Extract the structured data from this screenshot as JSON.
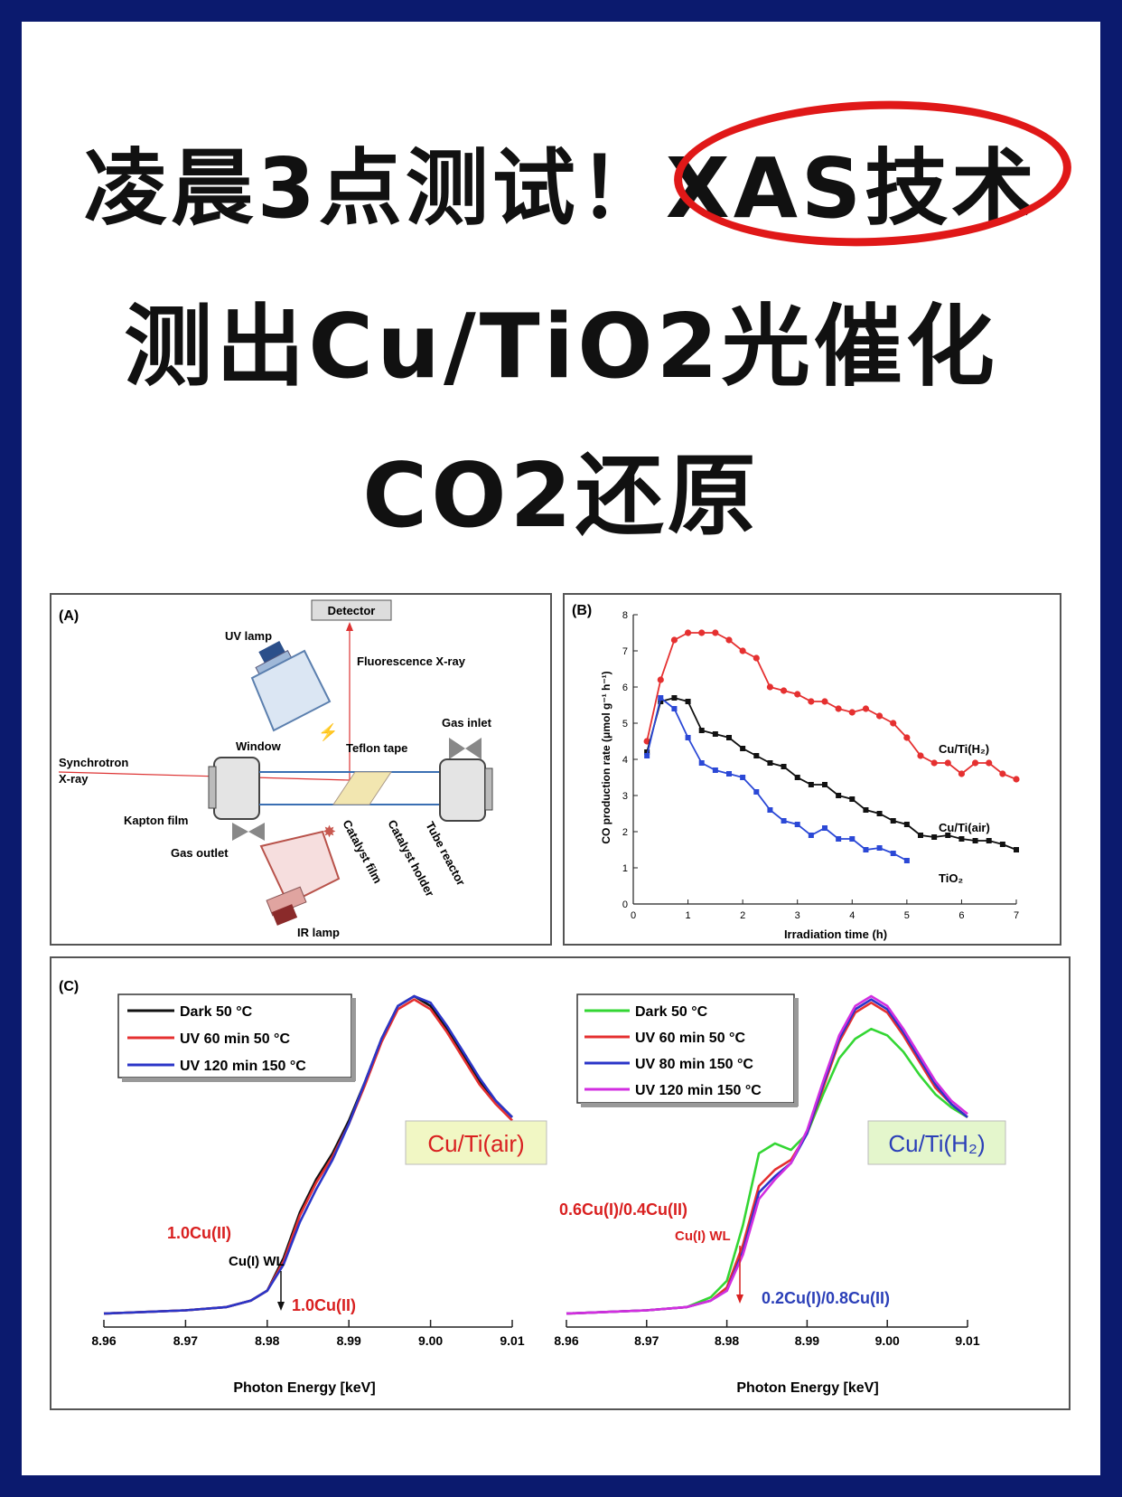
{
  "title": {
    "line1_prefix": "凌晨3点测试！",
    "line1_highlight": "XAS技术",
    "line2": "测出Cu/TiO2光催化",
    "line3": "CO2还原"
  },
  "panelA": {
    "label": "(A)",
    "detector": "Detector",
    "uv_lamp": "UV lamp",
    "fluorescence": "Fluorescence X-ray",
    "gas_inlet": "Gas inlet",
    "window": "Window",
    "teflon": "Teflon tape",
    "synchrotron1": "Synchrotron",
    "synchrotron2": "X-ray",
    "kapton": "Kapton film",
    "gas_outlet": "Gas outlet",
    "catalyst_film": "Catalyst film",
    "catalyst_holder": "Catalyst holder",
    "tube_reactor": "Tube reactor",
    "ir_lamp": "IR lamp"
  },
  "chart_data": [
    {
      "type": "line",
      "panel": "(B)",
      "xlabel": "Irradiation time (h)",
      "ylabel": "CO production rate (μmol g⁻¹ h⁻¹)",
      "xlim": [
        0,
        7
      ],
      "ylim": [
        0,
        8
      ],
      "xticks": [
        "0",
        "1",
        "2",
        "3",
        "4",
        "5",
        "6",
        "7"
      ],
      "yticks": [
        "0",
        "1",
        "2",
        "3",
        "4",
        "5",
        "6",
        "7",
        "8"
      ],
      "series": [
        {
          "name": "Cu/Ti(H₂)",
          "color": "#e53030",
          "x": [
            0.25,
            0.5,
            0.75,
            1.0,
            1.25,
            1.5,
            1.75,
            2.0,
            2.25,
            2.5,
            2.75,
            3.0,
            3.25,
            3.5,
            3.75,
            4.0,
            4.25,
            4.5,
            4.75,
            5.0,
            5.25,
            5.5,
            5.75,
            6.0,
            6.25,
            6.5,
            6.75,
            7.0
          ],
          "y": [
            4.5,
            6.2,
            7.3,
            7.5,
            7.5,
            7.5,
            7.3,
            7.0,
            6.8,
            6.0,
            5.9,
            5.8,
            5.6,
            5.6,
            5.4,
            5.3,
            5.4,
            5.2,
            5.0,
            4.6,
            4.1,
            3.9,
            3.9,
            3.6,
            3.9,
            3.9,
            3.6,
            3.45
          ]
        },
        {
          "name": "Cu/Ti(air)",
          "color": "#111111",
          "x": [
            0.25,
            0.5,
            0.75,
            1.0,
            1.25,
            1.5,
            1.75,
            2.0,
            2.25,
            2.5,
            2.75,
            3.0,
            3.25,
            3.5,
            3.75,
            4.0,
            4.25,
            4.5,
            4.75,
            5.0,
            5.25,
            5.5,
            5.75,
            6.0,
            6.25,
            6.5,
            6.75,
            7.0
          ],
          "y": [
            4.2,
            5.6,
            5.7,
            5.6,
            4.8,
            4.7,
            4.6,
            4.3,
            4.1,
            3.9,
            3.8,
            3.5,
            3.3,
            3.3,
            3.0,
            2.9,
            2.6,
            2.5,
            2.3,
            2.2,
            1.9,
            1.85,
            1.9,
            1.8,
            1.75,
            1.75,
            1.65,
            1.5
          ]
        },
        {
          "name": "TiO₂",
          "color": "#2b48d6",
          "x": [
            0.25,
            0.5,
            0.75,
            1.0,
            1.25,
            1.5,
            1.75,
            2.0,
            2.25,
            2.5,
            2.75,
            3.0,
            3.25,
            3.5,
            3.75,
            4.0,
            4.25,
            4.5,
            4.75,
            5.0
          ],
          "y": [
            4.1,
            5.7,
            5.4,
            4.6,
            3.9,
            3.7,
            3.6,
            3.5,
            3.1,
            2.6,
            2.3,
            2.2,
            1.9,
            2.1,
            1.8,
            1.8,
            1.5,
            1.55,
            1.4,
            1.2
          ]
        }
      ]
    },
    {
      "type": "line",
      "panel": "(C)",
      "xlabel": "Photon Energy [keV]",
      "xlim": [
        8.96,
        9.01
      ],
      "xticks": [
        "8.96",
        "8.97",
        "8.98",
        "8.99",
        "9.00",
        "9.01"
      ],
      "label_box": "Cu/Ti(air)",
      "annotations": [
        "1.0Cu(II)",
        "Cu(I) WL",
        "1.0Cu(II)"
      ],
      "series": [
        {
          "name": "Dark 50 °C",
          "color": "#111111",
          "x": [
            8.96,
            8.965,
            8.97,
            8.975,
            8.978,
            8.98,
            8.982,
            8.984,
            8.986,
            8.988,
            8.99,
            8.992,
            8.994,
            8.996,
            8.998,
            9.0,
            9.002,
            9.004,
            9.006,
            9.008,
            9.01
          ],
          "y": [
            0.03,
            0.035,
            0.04,
            0.05,
            0.07,
            0.1,
            0.2,
            0.34,
            0.44,
            0.52,
            0.62,
            0.74,
            0.87,
            0.97,
            1.0,
            0.97,
            0.9,
            0.82,
            0.74,
            0.68,
            0.63
          ]
        },
        {
          "name": "UV 60 min 50 °C",
          "color": "#e53030",
          "x": [
            8.96,
            8.965,
            8.97,
            8.975,
            8.978,
            8.98,
            8.982,
            8.984,
            8.986,
            8.988,
            8.99,
            8.992,
            8.994,
            8.996,
            8.998,
            9.0,
            9.002,
            9.004,
            9.006,
            9.008,
            9.01
          ],
          "y": [
            0.03,
            0.035,
            0.04,
            0.05,
            0.07,
            0.1,
            0.19,
            0.33,
            0.43,
            0.51,
            0.61,
            0.73,
            0.86,
            0.96,
            0.99,
            0.96,
            0.89,
            0.81,
            0.73,
            0.67,
            0.62
          ]
        },
        {
          "name": "UV 120 min 150 °C",
          "color": "#2b35c8",
          "x": [
            8.96,
            8.965,
            8.97,
            8.975,
            8.978,
            8.98,
            8.982,
            8.984,
            8.986,
            8.988,
            8.99,
            8.992,
            8.994,
            8.996,
            8.998,
            9.0,
            9.002,
            9.004,
            9.006,
            9.008,
            9.01
          ],
          "y": [
            0.03,
            0.035,
            0.04,
            0.05,
            0.07,
            0.1,
            0.18,
            0.31,
            0.41,
            0.5,
            0.61,
            0.74,
            0.87,
            0.97,
            1.0,
            0.98,
            0.91,
            0.83,
            0.75,
            0.68,
            0.63
          ]
        }
      ]
    },
    {
      "type": "line",
      "panel": "(C)",
      "xlabel": "Photon Energy [keV]",
      "xlim": [
        8.96,
        9.01
      ],
      "xticks": [
        "8.96",
        "8.97",
        "8.98",
        "8.99",
        "9.00",
        "9.01"
      ],
      "label_box": "Cu/Ti(H₂)",
      "annotations": [
        "0.6Cu(I)/0.4Cu(II)",
        "Cu(I) WL",
        "0.2Cu(I)/0.8Cu(II)"
      ],
      "series": [
        {
          "name": "Dark 50 °C",
          "color": "#33d633",
          "x": [
            8.96,
            8.965,
            8.97,
            8.975,
            8.978,
            8.98,
            8.982,
            8.984,
            8.986,
            8.988,
            8.99,
            8.992,
            8.994,
            8.996,
            8.998,
            9.0,
            9.002,
            9.004,
            9.006,
            9.008,
            9.01
          ],
          "y": [
            0.03,
            0.035,
            0.04,
            0.05,
            0.08,
            0.13,
            0.3,
            0.52,
            0.55,
            0.53,
            0.58,
            0.7,
            0.81,
            0.87,
            0.9,
            0.88,
            0.83,
            0.76,
            0.7,
            0.66,
            0.63
          ]
        },
        {
          "name": "UV 60 min 50 °C",
          "color": "#e53030",
          "x": [
            8.96,
            8.965,
            8.97,
            8.975,
            8.978,
            8.98,
            8.982,
            8.984,
            8.986,
            8.988,
            8.99,
            8.992,
            8.994,
            8.996,
            8.998,
            9.0,
            9.002,
            9.004,
            9.006,
            9.008,
            9.01
          ],
          "y": [
            0.03,
            0.035,
            0.04,
            0.05,
            0.07,
            0.11,
            0.24,
            0.42,
            0.47,
            0.5,
            0.58,
            0.72,
            0.86,
            0.95,
            0.98,
            0.95,
            0.88,
            0.8,
            0.72,
            0.67,
            0.63
          ]
        },
        {
          "name": "UV 80 min 150 °C",
          "color": "#2b35c8",
          "x": [
            8.96,
            8.965,
            8.97,
            8.975,
            8.978,
            8.98,
            8.982,
            8.984,
            8.986,
            8.988,
            8.99,
            8.992,
            8.994,
            8.996,
            8.998,
            9.0,
            9.002,
            9.004,
            9.006,
            9.008,
            9.01
          ],
          "y": [
            0.03,
            0.035,
            0.04,
            0.05,
            0.07,
            0.1,
            0.22,
            0.4,
            0.45,
            0.49,
            0.58,
            0.73,
            0.87,
            0.96,
            0.99,
            0.96,
            0.89,
            0.81,
            0.73,
            0.67,
            0.63
          ]
        },
        {
          "name": "UV 120 min 150 °C",
          "color": "#d22ee0",
          "x": [
            8.96,
            8.965,
            8.97,
            8.975,
            8.978,
            8.98,
            8.982,
            8.984,
            8.986,
            8.988,
            8.99,
            8.992,
            8.994,
            8.996,
            8.998,
            9.0,
            9.002,
            9.004,
            9.006,
            9.008,
            9.01
          ],
          "y": [
            0.03,
            0.035,
            0.04,
            0.05,
            0.07,
            0.1,
            0.21,
            0.38,
            0.44,
            0.49,
            0.59,
            0.74,
            0.88,
            0.97,
            1.0,
            0.97,
            0.9,
            0.82,
            0.74,
            0.68,
            0.64
          ]
        }
      ]
    }
  ]
}
